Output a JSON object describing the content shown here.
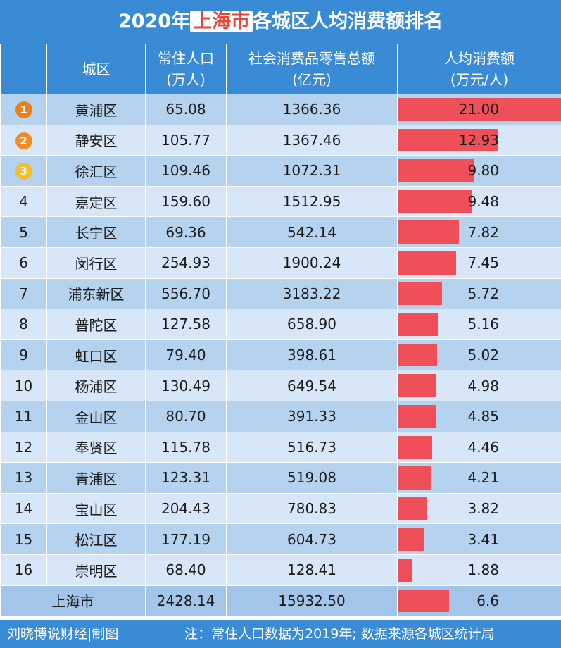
{
  "title": {
    "before": "2020年",
    "highlight": "上海市",
    "after": "各城区人均消费额排名"
  },
  "columns": {
    "rank": "",
    "district": "城区",
    "population": [
      "常住人口",
      "(万人)"
    ],
    "retail": [
      "社会消费品零售总额",
      "(亿元)"
    ],
    "per_capita": [
      "人均消费额",
      "(万元/人)"
    ]
  },
  "chart_data": {
    "type": "bar",
    "title": "2020年上海市各城区人均消费额排名",
    "categories": [
      "黄浦区",
      "静安区",
      "徐汇区",
      "嘉定区",
      "长宁区",
      "闵行区",
      "浦东新区",
      "普陀区",
      "虹口区",
      "杨浦区",
      "金山区",
      "奉贤区",
      "青浦区",
      "宝山区",
      "松江区",
      "崇明区",
      "上海市"
    ],
    "ylabel": "人均消费额 (万元/人)",
    "xlim": [
      0,
      21
    ],
    "series": [
      {
        "name": "人均消费额",
        "values": [
          21.0,
          12.93,
          9.8,
          9.48,
          7.82,
          7.45,
          5.72,
          5.16,
          5.02,
          4.98,
          4.85,
          4.46,
          4.21,
          3.82,
          3.41,
          1.88,
          6.6
        ]
      }
    ],
    "bar_color": "#ee4f58"
  },
  "rows": [
    {
      "rank": "1",
      "medal": "gold",
      "district": "黄浦区",
      "population": "65.08",
      "retail": "1366.36",
      "per_capita": "21.00",
      "value": 21.0
    },
    {
      "rank": "2",
      "medal": "orange",
      "district": "静安区",
      "population": "105.77",
      "retail": "1367.46",
      "per_capita": "12.93",
      "value": 12.93
    },
    {
      "rank": "3",
      "medal": "yellow",
      "district": "徐汇区",
      "population": "109.46",
      "retail": "1072.31",
      "per_capita": "9.80",
      "value": 9.8
    },
    {
      "rank": "4",
      "district": "嘉定区",
      "population": "159.60",
      "retail": "1512.95",
      "per_capita": "9.48",
      "value": 9.48
    },
    {
      "rank": "5",
      "district": "长宁区",
      "population": "69.36",
      "retail": "542.14",
      "per_capita": "7.82",
      "value": 7.82
    },
    {
      "rank": "6",
      "district": "闵行区",
      "population": "254.93",
      "retail": "1900.24",
      "per_capita": "7.45",
      "value": 7.45
    },
    {
      "rank": "7",
      "district": "浦东新区",
      "population": "556.70",
      "retail": "3183.22",
      "per_capita": "5.72",
      "value": 5.72
    },
    {
      "rank": "8",
      "district": "普陀区",
      "population": "127.58",
      "retail": "658.90",
      "per_capita": "5.16",
      "value": 5.16
    },
    {
      "rank": "9",
      "district": "虹口区",
      "population": "79.40",
      "retail": "398.61",
      "per_capita": "5.02",
      "value": 5.02
    },
    {
      "rank": "10",
      "district": "杨浦区",
      "population": "130.49",
      "retail": "649.54",
      "per_capita": "4.98",
      "value": 4.98
    },
    {
      "rank": "11",
      "district": "金山区",
      "population": "80.70",
      "retail": "391.33",
      "per_capita": "4.85",
      "value": 4.85
    },
    {
      "rank": "12",
      "district": "奉贤区",
      "population": "115.78",
      "retail": "516.73",
      "per_capita": "4.46",
      "value": 4.46
    },
    {
      "rank": "13",
      "district": "青浦区",
      "population": "123.31",
      "retail": "519.08",
      "per_capita": "4.21",
      "value": 4.21
    },
    {
      "rank": "14",
      "district": "宝山区",
      "population": "204.43",
      "retail": "780.83",
      "per_capita": "3.82",
      "value": 3.82
    },
    {
      "rank": "15",
      "district": "松江区",
      "population": "177.19",
      "retail": "604.73",
      "per_capita": "3.41",
      "value": 3.41
    },
    {
      "rank": "16",
      "district": "崇明区",
      "population": "68.40",
      "retail": "128.41",
      "per_capita": "1.88",
      "value": 1.88
    }
  ],
  "total": {
    "district": "上海市",
    "population": "2428.14",
    "retail": "15932.50",
    "per_capita": "6.6",
    "value": 6.6
  },
  "footer": {
    "credit": "刘晓博说财经|制图",
    "note": "注：常住人口数据为2019年; 数据来源各城区统计局"
  },
  "watermark": "刘晓博说财经",
  "colors": {
    "header": "#3a8bd6",
    "row_dark": "#b5d2ef",
    "row_light": "#d7e7f8",
    "bar": "#ee4f58",
    "medal_1": "#ef7d1a",
    "medal_2": "#f08c24",
    "medal_3": "#f6bc33"
  }
}
